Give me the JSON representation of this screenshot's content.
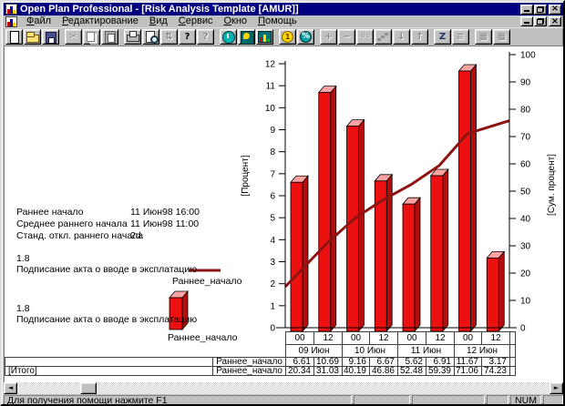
{
  "titlebar": {
    "title": "Open Plan Professional - [Risk Analysis Template [AMUR]]",
    "close_glyph": "×"
  },
  "menu": {
    "items": [
      {
        "name": "file",
        "label": "Файл"
      },
      {
        "name": "edit",
        "label": "Редактирование"
      },
      {
        "name": "view",
        "label": "Вид"
      },
      {
        "name": "tools",
        "label": "Сервис"
      },
      {
        "name": "window",
        "label": "Окно"
      },
      {
        "name": "help",
        "label": "Помощь"
      }
    ]
  },
  "toolbar": {
    "buttons": [
      {
        "name": "new-document",
        "glyph": "",
        "enabled": true,
        "group": 0
      },
      {
        "name": "open-file",
        "glyph": "",
        "enabled": true,
        "group": 0
      },
      {
        "name": "save-file",
        "glyph": "",
        "enabled": true,
        "group": 0
      },
      {
        "name": "cut",
        "glyph": "✂",
        "enabled": false,
        "group": 1
      },
      {
        "name": "copy",
        "glyph": "",
        "enabled": false,
        "group": 1
      },
      {
        "name": "paste",
        "glyph": "",
        "enabled": false,
        "group": 1
      },
      {
        "name": "print",
        "glyph": "",
        "enabled": true,
        "group": 2
      },
      {
        "name": "print-preview",
        "glyph": "",
        "enabled": true,
        "group": 2
      },
      {
        "name": "update",
        "glyph": "⇅",
        "enabled": false,
        "group": 2
      },
      {
        "name": "help",
        "glyph": "?",
        "enabled": true,
        "group": 2
      },
      {
        "name": "context-help",
        "glyph": "?",
        "enabled": false,
        "group": 2
      },
      {
        "name": "time-analysis",
        "glyph": "",
        "enabled": true,
        "group": 3
      },
      {
        "name": "resource-analysis",
        "glyph": "",
        "enabled": true,
        "group": 3
      },
      {
        "name": "histogram-view",
        "glyph": "",
        "enabled": true,
        "group": 3
      },
      {
        "name": "cost",
        "glyph": "1",
        "enabled": true,
        "group": 4
      },
      {
        "name": "risk-percent",
        "glyph": "%",
        "enabled": true,
        "group": 4
      },
      {
        "name": "add-activity",
        "glyph": "+",
        "enabled": false,
        "group": 5
      },
      {
        "name": "delete-activity",
        "glyph": "−",
        "enabled": false,
        "group": 5
      },
      {
        "name": "link-activities",
        "glyph": "◦◦",
        "enabled": false,
        "group": 5
      },
      {
        "name": "steps",
        "glyph": "",
        "enabled": false,
        "group": 5
      },
      {
        "name": "move-down",
        "glyph": "↓",
        "enabled": false,
        "group": 5
      },
      {
        "name": "move-up",
        "glyph": "↑",
        "enabled": false,
        "group": 5
      },
      {
        "name": "sort",
        "glyph": "Z",
        "enabled": true,
        "group": 6
      },
      {
        "name": "notes",
        "glyph": "≡",
        "enabled": false,
        "group": 6
      },
      {
        "name": "layout-a",
        "glyph": "▦",
        "enabled": false,
        "group": 7
      },
      {
        "name": "layout-b",
        "glyph": "▦",
        "enabled": false,
        "group": 7
      }
    ]
  },
  "stats": {
    "rows": [
      {
        "label": "Раннее начало",
        "value": "11 Июн98 16:00"
      },
      {
        "label": "Среднее раннего начала",
        "value": "11 Июн98 11:00"
      },
      {
        "label": "Станд. откл.  раннего начала",
        "value": "2d"
      }
    ]
  },
  "legend": {
    "line": {
      "value": "1.8",
      "activity": "Подписание акта о вводе в эксплатацию",
      "series": "Раннее_начало"
    },
    "bar": {
      "value": "1.8",
      "activity": "Подписание акта о вводе в эксплатацию",
      "series": "Раннее_начало"
    }
  },
  "chart_data": {
    "type": "bar",
    "categories": [
      "00",
      "12",
      "00",
      "12",
      "00",
      "12",
      "00",
      "12"
    ],
    "date_groups": [
      "09 Июн",
      "10 Июн",
      "11 Июн",
      "12 Июн"
    ],
    "series": [
      {
        "name": "Раннее_начало",
        "type": "bar",
        "axis": "left",
        "values": [
          6.61,
          10.69,
          9.16,
          6.67,
          5.62,
          6.91,
          11.67,
          3.17
        ],
        "color": "#ed1010"
      },
      {
        "name": "Раннее_начало [Итого]",
        "type": "line",
        "axis": "right",
        "values": [
          20.34,
          31.03,
          40.19,
          46.86,
          52.48,
          59.39,
          71.06,
          74.23
        ],
        "color": "#8e1313"
      }
    ],
    "left_axis": {
      "label": "[Процент]",
      "min": 0,
      "max": 12,
      "step": 1
    },
    "right_axis": {
      "label": "[Сум. процент]",
      "min": 0,
      "max": 100,
      "step": 10
    },
    "colors": {
      "bar_front": "#ed1010",
      "bar_side": "#b50d0d",
      "bar_top": "#ffa3a3",
      "line": "#8e1313"
    },
    "legend_position": "left",
    "grid": false
  },
  "value_table": {
    "rows": [
      {
        "group": "",
        "series": "Раннее_начало",
        "values": [
          "6.61",
          "10.69",
          "9.16",
          "6.67",
          "5.62",
          "6.91",
          "11.67",
          "3.17"
        ]
      },
      {
        "group": "[Итого]",
        "series": "Раннее_начало",
        "values": [
          "20.34",
          "31.03",
          "40.19",
          "46.86",
          "52.48",
          "59.39",
          "71.06",
          "74.23"
        ]
      }
    ]
  },
  "scrollbar": {
    "left_glyph": "◄",
    "right_glyph": "►"
  },
  "statusbar": {
    "message": "Для получения помощи нажмите F1",
    "num": "NUM"
  }
}
